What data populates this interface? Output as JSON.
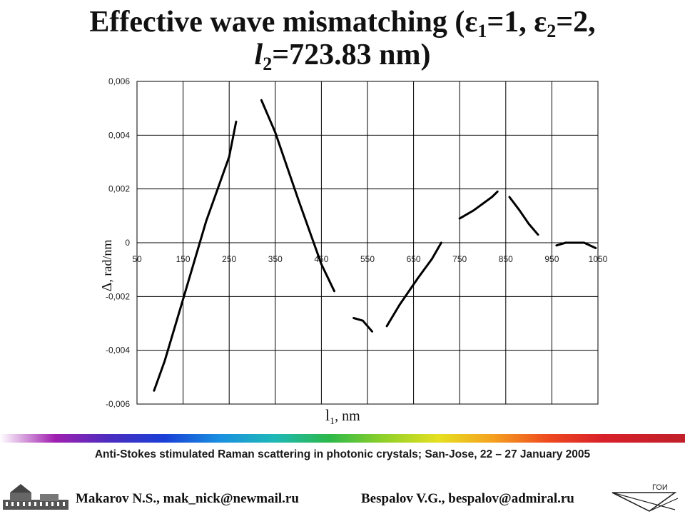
{
  "title": {
    "prefix": "Effective wave mismatching (",
    "eps1_sym": "ε",
    "eps1_sub": "1",
    "eps1_val": "=1, ",
    "eps2_sym": "ε",
    "eps2_sub": "2",
    "eps2_val": "=2,",
    "l2_sym": "l",
    "l2_sub": "2",
    "l2_val": "=723.83 nm)"
  },
  "footer": {
    "conference": "Anti-Stokes stimulated Raman scattering in photonic crystals; San-Jose, 22 – 27 January  2005",
    "author1": "Makarov N.S., mak_nick@newmail.ru",
    "author2": "Bespalov V.G., bespalov@admiral.ru",
    "logo_text": "ГОИ"
  },
  "colors": {
    "line": "#000000",
    "grid": "#000000",
    "background": "#ffffff"
  },
  "chart_data": {
    "type": "line",
    "xlabel_sym": "l",
    "xlabel_sub": "1",
    "xlabel_unit": ", nm",
    "ylabel_sym": "Δ",
    "ylabel_unit": ",  rad/nm",
    "xlim": [
      50,
      1050
    ],
    "ylim": [
      -0.006,
      0.006
    ],
    "grid": true,
    "x_ticks": [
      "50",
      "150",
      "250",
      "350",
      "450",
      "550",
      "650",
      "750",
      "850",
      "950",
      "1050"
    ],
    "y_ticks": [
      "0,006",
      "0,004",
      "0,002",
      "0",
      "-0,002",
      "-0,004",
      "-0,006"
    ],
    "series": [
      {
        "points": [
          [
            87,
            -0.0055
          ],
          [
            110,
            -0.0044
          ],
          [
            150,
            -0.0021
          ],
          [
            200,
            0.0008
          ],
          [
            250,
            0.0032
          ],
          [
            265,
            0.0045
          ]
        ]
      },
      {
        "points": [
          [
            320,
            0.0053
          ],
          [
            350,
            0.0041
          ],
          [
            400,
            0.0016
          ],
          [
            450,
            -0.0008
          ],
          [
            478,
            -0.0018
          ]
        ]
      },
      {
        "points": [
          [
            520,
            -0.0028
          ],
          [
            540,
            -0.0029
          ],
          [
            560,
            -0.0033
          ]
        ]
      },
      {
        "points": [
          [
            592,
            -0.0031
          ],
          [
            620,
            -0.0023
          ],
          [
            660,
            -0.0013
          ],
          [
            690,
            -0.0006
          ],
          [
            710,
            0.0
          ]
        ]
      },
      {
        "points": [
          [
            750,
            0.0009
          ],
          [
            780,
            0.0012
          ],
          [
            820,
            0.0017
          ],
          [
            832,
            0.0019
          ]
        ]
      },
      {
        "points": [
          [
            858,
            0.0017
          ],
          [
            880,
            0.0012
          ],
          [
            900,
            0.0007
          ],
          [
            920,
            0.0003
          ]
        ]
      },
      {
        "points": [
          [
            960,
            -0.0001
          ],
          [
            980,
            0.0
          ],
          [
            1020,
            0.0
          ],
          [
            1045,
            -0.0002
          ]
        ]
      }
    ]
  }
}
